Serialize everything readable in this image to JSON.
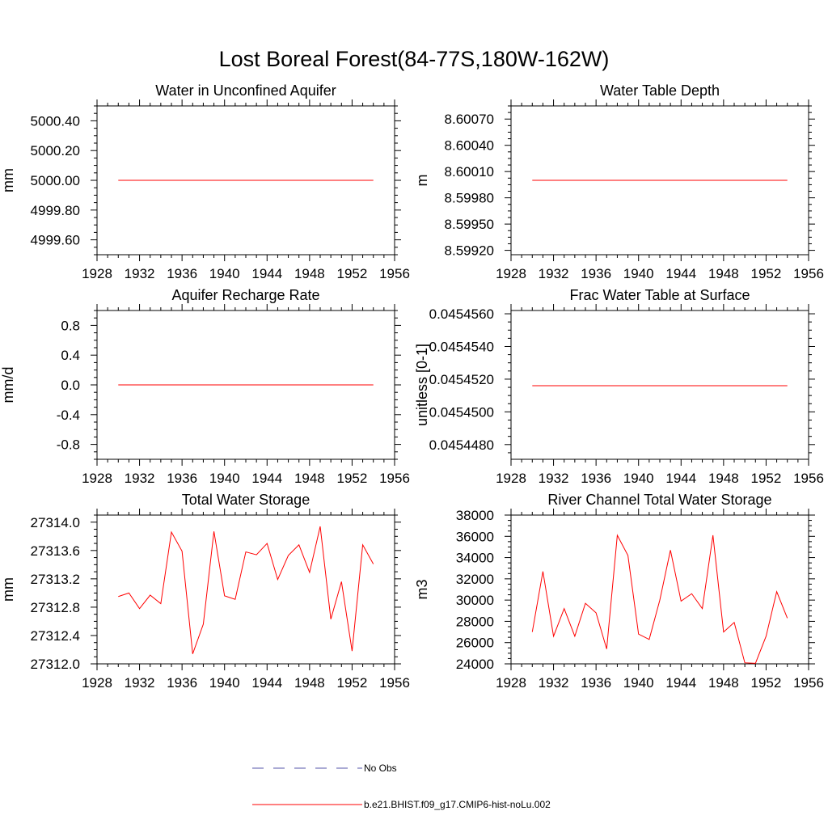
{
  "figure": {
    "title": "Lost Boreal Forest(84-77S,180W-162W)",
    "colors": {
      "series": "#ff0000",
      "obs": "#5555aa",
      "axis": "#000000"
    }
  },
  "legend": {
    "placement": "bottom-center",
    "entries": [
      {
        "label": "No Obs",
        "style": "dashed",
        "color": "#5555aa"
      },
      {
        "label": "b.e21.BHIST.f09_g17.CMIP6-hist-noLu.002",
        "style": "solid",
        "color": "#ff0000"
      }
    ]
  },
  "chart_data": [
    {
      "type": "line",
      "title": "Water in Unconfined Aquifer",
      "ylabel": "mm",
      "xlim": [
        1928,
        1956
      ],
      "xticks": [
        1928,
        1932,
        1936,
        1940,
        1944,
        1948,
        1952,
        1956
      ],
      "ylim": [
        4999.5,
        5000.5
      ],
      "yticks": [
        4999.6,
        4999.8,
        5000.0,
        5000.2,
        5000.4
      ],
      "ytick_labels": [
        "4999.60",
        "4999.80",
        "5000.00",
        "5000.20",
        "5000.40"
      ],
      "series": [
        {
          "x": [
            1930,
            1931,
            1932,
            1933,
            1934,
            1935,
            1936,
            1937,
            1938,
            1939,
            1940,
            1941,
            1942,
            1943,
            1944,
            1945,
            1946,
            1947,
            1948,
            1949,
            1950,
            1951,
            1952,
            1953,
            1954
          ],
          "values": [
            5000.0,
            5000.0,
            5000.0,
            5000.0,
            5000.0,
            5000.0,
            5000.0,
            5000.0,
            5000.0,
            5000.0,
            5000.0,
            5000.0,
            5000.0,
            5000.0,
            5000.0,
            5000.0,
            5000.0,
            5000.0,
            5000.0,
            5000.0,
            5000.0,
            5000.0,
            5000.0,
            5000.0,
            5000.0
          ]
        }
      ]
    },
    {
      "type": "line",
      "title": "Water Table Depth",
      "ylabel": "m",
      "xlim": [
        1928,
        1956
      ],
      "xticks": [
        1928,
        1932,
        1936,
        1940,
        1944,
        1948,
        1952,
        1956
      ],
      "ylim": [
        8.59915,
        8.60085
      ],
      "yticks": [
        8.5992,
        8.5995,
        8.5998,
        8.6001,
        8.6004,
        8.6007
      ],
      "ytick_labels": [
        "8.59920",
        "8.59950",
        "8.59980",
        "8.60010",
        "8.60040",
        "8.60070"
      ],
      "series": [
        {
          "x": [
            1930,
            1931,
            1932,
            1933,
            1934,
            1935,
            1936,
            1937,
            1938,
            1939,
            1940,
            1941,
            1942,
            1943,
            1944,
            1945,
            1946,
            1947,
            1948,
            1949,
            1950,
            1951,
            1952,
            1953,
            1954
          ],
          "values": [
            8.6,
            8.6,
            8.6,
            8.6,
            8.6,
            8.6,
            8.6,
            8.6,
            8.6,
            8.6,
            8.6,
            8.6,
            8.6,
            8.6,
            8.6,
            8.6,
            8.6,
            8.6,
            8.6,
            8.6,
            8.6,
            8.6,
            8.6,
            8.6,
            8.6
          ]
        }
      ]
    },
    {
      "type": "line",
      "title": "Aquifer Recharge Rate",
      "ylabel": "mm/d",
      "xlim": [
        1928,
        1956
      ],
      "xticks": [
        1928,
        1932,
        1936,
        1940,
        1944,
        1948,
        1952,
        1956
      ],
      "ylim": [
        -1.0,
        1.0
      ],
      "yticks": [
        -0.8,
        -0.4,
        0.0,
        0.4,
        0.8
      ],
      "ytick_labels": [
        "-0.8",
        "-0.4",
        "0.0",
        "0.4",
        "0.8"
      ],
      "series": [
        {
          "x": [
            1930,
            1931,
            1932,
            1933,
            1934,
            1935,
            1936,
            1937,
            1938,
            1939,
            1940,
            1941,
            1942,
            1943,
            1944,
            1945,
            1946,
            1947,
            1948,
            1949,
            1950,
            1951,
            1952,
            1953,
            1954
          ],
          "values": [
            0.0,
            0.0,
            0.0,
            0.0,
            0.0,
            0.0,
            0.0,
            0.0,
            0.0,
            0.0,
            0.0,
            0.0,
            0.0,
            0.0,
            0.0,
            0.0,
            0.0,
            0.0,
            0.0,
            0.0,
            0.0,
            0.0,
            0.0,
            0.0,
            0.0
          ]
        }
      ]
    },
    {
      "type": "line",
      "title": "Frac Water Table at Surface",
      "ylabel": "unitless [0-1]",
      "xlim": [
        1928,
        1956
      ],
      "xticks": [
        1928,
        1932,
        1936,
        1940,
        1944,
        1948,
        1952,
        1956
      ],
      "ylim": [
        0.0454471,
        0.0454562
      ],
      "yticks": [
        0.045448,
        0.04545,
        0.045452,
        0.045454,
        0.045456
      ],
      "ytick_labels": [
        "0.0454480",
        "0.0454500",
        "0.0454520",
        "0.0454540",
        "0.0454560"
      ],
      "series": [
        {
          "x": [
            1930,
            1931,
            1932,
            1933,
            1934,
            1935,
            1936,
            1937,
            1938,
            1939,
            1940,
            1941,
            1942,
            1943,
            1944,
            1945,
            1946,
            1947,
            1948,
            1949,
            1950,
            1951,
            1952,
            1953,
            1954
          ],
          "values": [
            0.0454516,
            0.0454516,
            0.0454516,
            0.0454516,
            0.0454516,
            0.0454516,
            0.0454516,
            0.0454516,
            0.0454516,
            0.0454516,
            0.0454516,
            0.0454516,
            0.0454516,
            0.0454516,
            0.0454516,
            0.0454516,
            0.0454516,
            0.0454516,
            0.0454516,
            0.0454516,
            0.0454516,
            0.0454516,
            0.0454516,
            0.0454516,
            0.0454516
          ]
        }
      ]
    },
    {
      "type": "line",
      "title": "Total Water Storage",
      "ylabel": "mm",
      "xlim": [
        1928,
        1956
      ],
      "xticks": [
        1928,
        1932,
        1936,
        1940,
        1944,
        1948,
        1952,
        1956
      ],
      "ylim": [
        27312.0,
        27314.1
      ],
      "yticks": [
        27312.0,
        27312.4,
        27312.8,
        27313.2,
        27313.6,
        27314.0
      ],
      "ytick_labels": [
        "27312.0",
        "27312.4",
        "27312.8",
        "27313.2",
        "27313.6",
        "27314.0"
      ],
      "series": [
        {
          "x": [
            1930,
            1931,
            1932,
            1933,
            1934,
            1935,
            1936,
            1937,
            1938,
            1939,
            1940,
            1941,
            1942,
            1943,
            1944,
            1945,
            1946,
            1947,
            1948,
            1949,
            1950,
            1951,
            1952,
            1953,
            1954
          ],
          "values": [
            27312.95,
            27313.0,
            27312.78,
            27312.97,
            27312.85,
            27313.86,
            27313.59,
            27312.14,
            27312.56,
            27313.87,
            27312.96,
            27312.91,
            27313.58,
            27313.54,
            27313.7,
            27313.19,
            27313.53,
            27313.68,
            27313.29,
            27313.94,
            27312.63,
            27313.16,
            27312.18,
            27313.68,
            27313.41
          ]
        }
      ]
    },
    {
      "type": "line",
      "title": "River Channel Total Water Storage",
      "ylabel": "m3",
      "xlim": [
        1928,
        1956
      ],
      "xticks": [
        1928,
        1932,
        1936,
        1940,
        1944,
        1948,
        1952,
        1956
      ],
      "ylim": [
        24000,
        38000
      ],
      "yticks": [
        24000,
        26000,
        28000,
        30000,
        32000,
        34000,
        36000,
        38000
      ],
      "ytick_labels": [
        "24000",
        "26000",
        "28000",
        "30000",
        "32000",
        "34000",
        "36000",
        "38000"
      ],
      "series": [
        {
          "x": [
            1930,
            1931,
            1932,
            1933,
            1934,
            1935,
            1936,
            1937,
            1938,
            1939,
            1940,
            1941,
            1942,
            1943,
            1944,
            1945,
            1946,
            1947,
            1948,
            1949,
            1950,
            1951,
            1952,
            1953,
            1954
          ],
          "values": [
            27000,
            32700,
            26600,
            29200,
            26600,
            29700,
            28800,
            25400,
            36100,
            34200,
            26800,
            26300,
            30000,
            34700,
            29900,
            30600,
            29200,
            36100,
            27000,
            27900,
            24100,
            24050,
            26600,
            30800,
            28300
          ]
        }
      ]
    }
  ]
}
